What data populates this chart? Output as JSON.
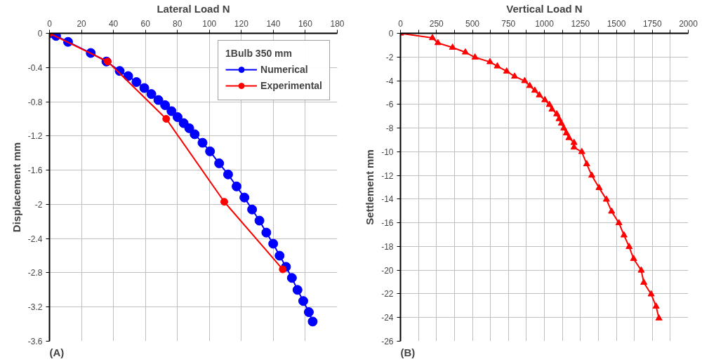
{
  "chart_data": [
    {
      "type": "line",
      "xlabel": "Lateral Load N",
      "ylabel": "Displacement mm",
      "legend_title": "1Bulb 350 mm",
      "legend": "top right",
      "grid": true,
      "marker": "circle",
      "line_style": "solid",
      "xlim": [
        0,
        180
      ],
      "xticks": [
        0,
        20,
        40,
        60,
        80,
        100,
        120,
        140,
        160,
        180
      ],
      "ylim": [
        -3.6,
        0
      ],
      "yticks": [
        0,
        -0.4,
        -0.8,
        -1.2,
        -1.6,
        -2,
        -2.4,
        -2.8,
        -3.2,
        -3.6
      ],
      "annotations": [
        "(A)"
      ],
      "series": [
        {
          "name": "Numerical",
          "color": "#0000ff",
          "x": [
            0,
            4.1,
            11.6,
            25.8,
            35.6,
            43.9,
            49.2,
            54.4,
            59.3,
            63.7,
            68.1,
            72.3,
            76.3,
            80.1,
            83.9,
            87.4,
            90.8,
            95.7,
            100.4,
            106.1,
            111.7,
            117.0,
            121.9,
            126.7,
            131.3,
            135.6,
            139.9,
            143.9,
            147.9,
            151.6,
            155.1,
            158.7,
            162.2,
            164.6
          ],
          "values": [
            0,
            -0.03,
            -0.1,
            -0.23,
            -0.33,
            -0.44,
            -0.5,
            -0.57,
            -0.64,
            -0.71,
            -0.78,
            -0.84,
            -0.91,
            -0.98,
            -1.05,
            -1.11,
            -1.18,
            -1.28,
            -1.38,
            -1.52,
            -1.65,
            -1.79,
            -1.92,
            -2.06,
            -2.19,
            -2.33,
            -2.46,
            -2.6,
            -2.73,
            -2.86,
            -3.0,
            -3.13,
            -3.26,
            -3.37
          ]
        },
        {
          "name": "Experimental",
          "color": "#ff0000",
          "x": [
            0,
            36.4,
            73.0,
            109.3,
            145.9
          ],
          "values": [
            0,
            -0.33,
            -1.0,
            -1.97,
            -2.76
          ]
        }
      ]
    },
    {
      "type": "line",
      "xlabel": "Vertical Load N",
      "ylabel": "Settlement mm",
      "grid": true,
      "marker": "triangle",
      "line_style": "solid",
      "xlim": [
        0,
        2000
      ],
      "xticks": [
        0,
        {
          "value": 125,
          "label": null
        },
        250,
        {
          "value": 375,
          "label": null
        },
        500,
        {
          "value": 625,
          "label": null
        },
        750,
        {
          "value": 875,
          "label": null
        },
        1000,
        {
          "value": 1125,
          "label": null
        },
        1250,
        {
          "value": 1375,
          "label": null
        },
        1500,
        {
          "value": 1625,
          "label": null
        },
        1750,
        {
          "value": 1875,
          "label": null
        },
        2000
      ],
      "ylim": [
        -26,
        0
      ],
      "yticks": [
        0,
        -2,
        -4,
        -6,
        -8,
        -10,
        -12,
        -14,
        -16,
        -18,
        -20,
        -22,
        -24,
        -26
      ],
      "annotations": [
        "(B)"
      ],
      "series": [
        {
          "color": "#ff0000",
          "x": [
            0,
            222,
            260,
            362,
            451,
            518,
            622,
            673,
            738,
            793,
            863,
            898,
            933,
            965,
            1003,
            1035,
            1053,
            1086,
            1102,
            1118,
            1135,
            1153,
            1171,
            1206,
            1206,
            1260,
            1294,
            1329,
            1380,
            1431,
            1467,
            1518,
            1553,
            1589,
            1620,
            1673,
            1691,
            1742,
            1776,
            1796
          ],
          "values": [
            0,
            -0.39,
            -0.81,
            -1.2,
            -1.6,
            -2.03,
            -2.42,
            -2.78,
            -3.21,
            -3.64,
            -4.02,
            -4.43,
            -4.83,
            -5.22,
            -5.63,
            -6.03,
            -6.42,
            -6.82,
            -7.23,
            -7.61,
            -8.02,
            -8.43,
            -8.83,
            -9.24,
            -9.63,
            -10.01,
            -11.04,
            -12.0,
            -13.05,
            -14.03,
            -15.04,
            -16.02,
            -17.05,
            -18.03,
            -19.04,
            -20.02,
            -21.05,
            -22.03,
            -23.06,
            -24.06
          ]
        }
      ]
    }
  ]
}
